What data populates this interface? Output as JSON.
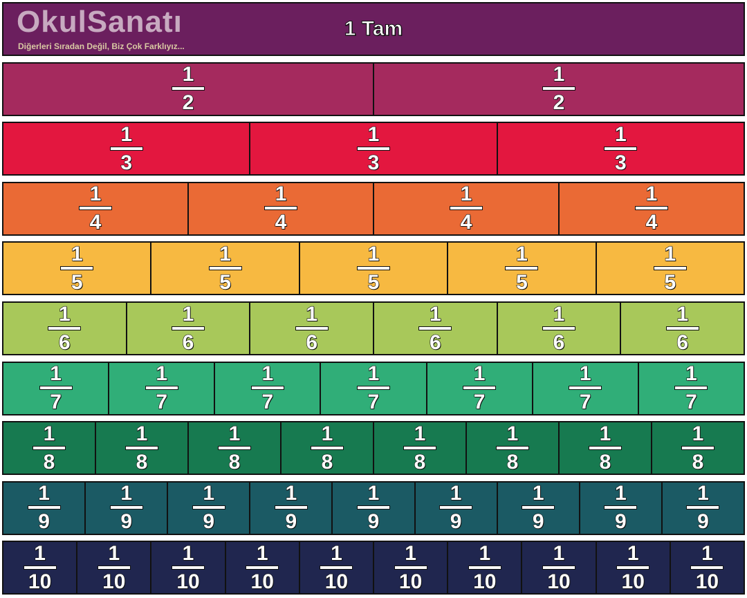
{
  "whole_label": "1 Tam",
  "rows": [
    {
      "denominator": 2,
      "color": "#a52a5e"
    },
    {
      "denominator": 3,
      "color": "#e3173f"
    },
    {
      "denominator": 4,
      "color": "#ea6a35"
    },
    {
      "denominator": 5,
      "color": "#f7b941"
    },
    {
      "denominator": 6,
      "color": "#a8c85a"
    },
    {
      "denominator": 7,
      "color": "#30ae78"
    },
    {
      "denominator": 8,
      "color": "#177a50"
    },
    {
      "denominator": 9,
      "color": "#1b5a64"
    },
    {
      "denominator": 10,
      "color": "#20264f"
    }
  ],
  "whole_color": "#6b1f5e",
  "numerator": "1",
  "watermark": {
    "logo": "OkulSanatı",
    "slogan": "Diğerleri Sıradan Değil, Biz Çok Farklıyız..."
  }
}
